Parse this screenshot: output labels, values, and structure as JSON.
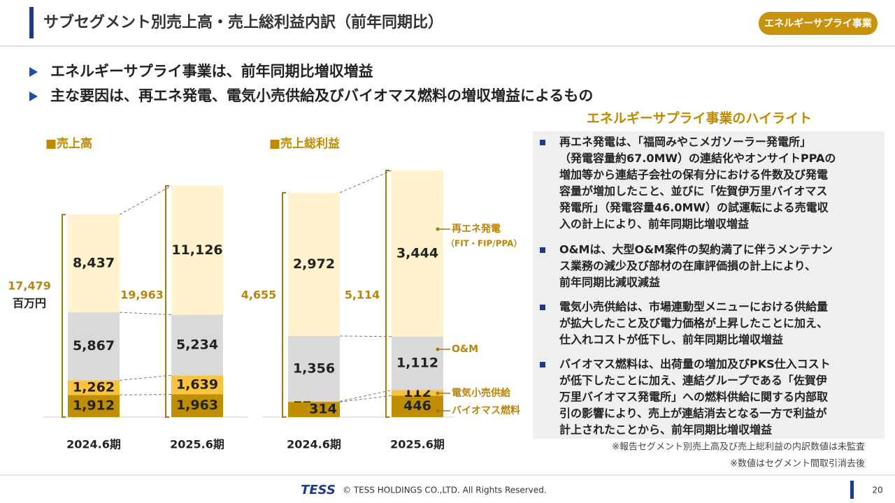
{
  "header": {
    "title": "サブセグメント別売上高・売上総利益内訳（前年同期比）",
    "badge": "エネルギーサプライ事業"
  },
  "bullets": [
    "エネルギーサプライ事業は、前年同期比増収増益",
    "主な要因は、再エネ発電、電気小売供給及びバイオマス燃料の増収増益によるもの"
  ],
  "chart_data": [
    {
      "type": "stacked_bar",
      "title": "■売上高",
      "unit": "百万円",
      "categories": [
        "2024.6期",
        "2025.6期"
      ],
      "totals": [
        17479,
        19963
      ],
      "total_labels": [
        "17,479",
        "19,963"
      ],
      "series": [
        {
          "color": "#bf8f00",
          "values": [
            1912,
            1963
          ],
          "value_labels": [
            "1,912",
            "1,963"
          ]
        },
        {
          "color": "#fac23e",
          "values": [
            1262,
            1639
          ],
          "value_labels": [
            "1,262",
            "1,639"
          ]
        },
        {
          "color": "#d9d9d9",
          "values": [
            5867,
            5234
          ],
          "value_labels": [
            "5,867",
            "5,234"
          ]
        },
        {
          "color": "#fff2cc",
          "values": [
            8437,
            11126
          ],
          "value_labels": [
            "8,437",
            "11,126"
          ]
        }
      ]
    },
    {
      "type": "stacked_bar",
      "title": "■売上総利益",
      "categories": [
        "2024.6期",
        "2025.6期"
      ],
      "totals": [
        4655,
        5114
      ],
      "total_labels": [
        "4,655",
        "5,114"
      ],
      "series": [
        {
          "name": "バイオマス燃料",
          "color": "#bf8f00",
          "values": [
            314,
            446
          ]
        },
        {
          "name": "電気小売供給",
          "color": "#fac23e",
          "values": [
            11,
            112
          ]
        },
        {
          "name": "O&M",
          "color": "#d9d9d9",
          "values": [
            1356,
            1112
          ],
          "value_labels": [
            "1,356",
            "1,112"
          ]
        },
        {
          "name": "再エネ発電",
          "note": "（FIT・FIP/PPA）",
          "color": "#fff2cc",
          "values": [
            2972,
            3444
          ],
          "value_labels": [
            "2,972",
            "3,444"
          ]
        }
      ]
    }
  ],
  "highlights": {
    "title": "エネルギーサプライ事業のハイライト",
    "items": [
      [
        "再エネ発電は、「福岡みやこメガソーラー発電所」",
        "（発電容量約67.0MW）の連結化やオンサイトPPAの",
        "増加等から連結子会社の保有分における件数及び発電",
        "容量が増加したこと、並びに「佐賀伊万里バイオマス",
        "発電所」（発電容量46.0MW）の試運転による売電収",
        "入の計上により、前年同期比増収増益"
      ],
      [
        "O&Mは、大型O&M案件の契約満了に伴うメンテナン",
        "ス業務の減少及び部材の在庫評価損の計上により、",
        "前年同期比減収減益"
      ],
      [
        "電気小売供給は、市場連動型メニューにおける供給量",
        "が拡大したこと及び電力価格が上昇したことに加え、",
        "仕入れコストが低下し、前年同期比増収増益"
      ],
      [
        "バイオマス燃料は、出荷量の増加及びPKS仕入コスト",
        "が低下したことに加え、連結グループである「佐賀伊",
        "万里バイオマス発電所」への燃料供給に関する内部取",
        "引の影響により、売上が連結消去となる一方で利益が",
        "計上されたことから、前年同期比増収増益"
      ]
    ]
  },
  "notes": [
    "※報告セグメント別売上高及び売上総利益の内訳数値は未監査",
    "※数値はセグメント間取引消去後"
  ],
  "footer": {
    "logo": "TESS",
    "copyright": "© TESS HOLDINGS CO.,LTD. All Rights Reserved.",
    "page": "20"
  }
}
